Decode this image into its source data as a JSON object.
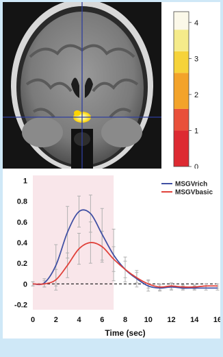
{
  "brain_image": {
    "description_icon": "coronal-mri-slice",
    "crosshair_color": "#2f3f9e",
    "activation_colors": [
      "#ffd400",
      "#ffffff"
    ]
  },
  "colorbar": {
    "ticks": [
      "0",
      "1",
      "2",
      "3",
      "4"
    ],
    "min": 0,
    "max": 4.3,
    "stops": [
      {
        "from": 0,
        "to": 1,
        "color": "#dd2a32"
      },
      {
        "from": 1,
        "to": 1.6,
        "color": "#e9503a"
      },
      {
        "from": 1.6,
        "to": 2.6,
        "color": "#f3a32a"
      },
      {
        "from": 2.6,
        "to": 3.2,
        "color": "#f6d33a"
      },
      {
        "from": 3.2,
        "to": 3.8,
        "color": "#f5eb8a"
      },
      {
        "from": 3.8,
        "to": 4.3,
        "color": "#fbf8e9"
      }
    ]
  },
  "chart_data": {
    "type": "line",
    "xlabel": "Time (sec)",
    "ylabel": "",
    "xlim": [
      0,
      16
    ],
    "ylim": [
      -0.25,
      1.05
    ],
    "xticks": [
      0,
      2,
      4,
      6,
      8,
      10,
      12,
      14,
      16
    ],
    "yticks": [
      -0.2,
      0,
      0.2,
      0.4,
      0.6,
      0.8,
      1
    ],
    "ytick_labels": [
      "-0.2",
      "0",
      "0.2",
      "0.4",
      "0.6",
      "0.8",
      "1"
    ],
    "shaded_region": {
      "x_from": 0,
      "x_to": 7,
      "color": "#f9e6ea"
    },
    "baseline": {
      "y": 0,
      "style": "dashed"
    },
    "legend_position": "top-right",
    "series": [
      {
        "name": "MSGVrich",
        "color": "#3f4fa3",
        "x": [
          0,
          1,
          2,
          3,
          4,
          5,
          6,
          7,
          8,
          9,
          10,
          11,
          12,
          13,
          14,
          15,
          16
        ],
        "y": [
          0,
          0.01,
          0.18,
          0.5,
          0.7,
          0.68,
          0.48,
          0.28,
          0.14,
          0.05,
          -0.02,
          -0.04,
          -0.03,
          -0.04,
          -0.04,
          -0.04,
          -0.04
        ],
        "err": [
          0.02,
          0.04,
          0.2,
          0.25,
          0.15,
          0.18,
          0.25,
          0.25,
          0.12,
          0.08,
          0.05,
          0.03,
          0.03,
          0.02,
          0.02,
          0.02,
          0.02
        ]
      },
      {
        "name": "MSGVbasic",
        "color": "#e0413a",
        "x": [
          0,
          1,
          2,
          3,
          4,
          5,
          6,
          7,
          8,
          9,
          10,
          11,
          12,
          13,
          14,
          15,
          16
        ],
        "y": [
          0,
          0,
          0.04,
          0.18,
          0.34,
          0.4,
          0.36,
          0.24,
          0.14,
          0.06,
          0.0,
          -0.03,
          -0.02,
          -0.03,
          -0.03,
          -0.02,
          -0.02
        ],
        "err": [
          0.02,
          0.03,
          0.1,
          0.12,
          0.15,
          0.2,
          0.15,
          0.12,
          0.08,
          0.05,
          0.04,
          0.03,
          0.03,
          0.02,
          0.02,
          0.02,
          0.02
        ]
      }
    ]
  }
}
